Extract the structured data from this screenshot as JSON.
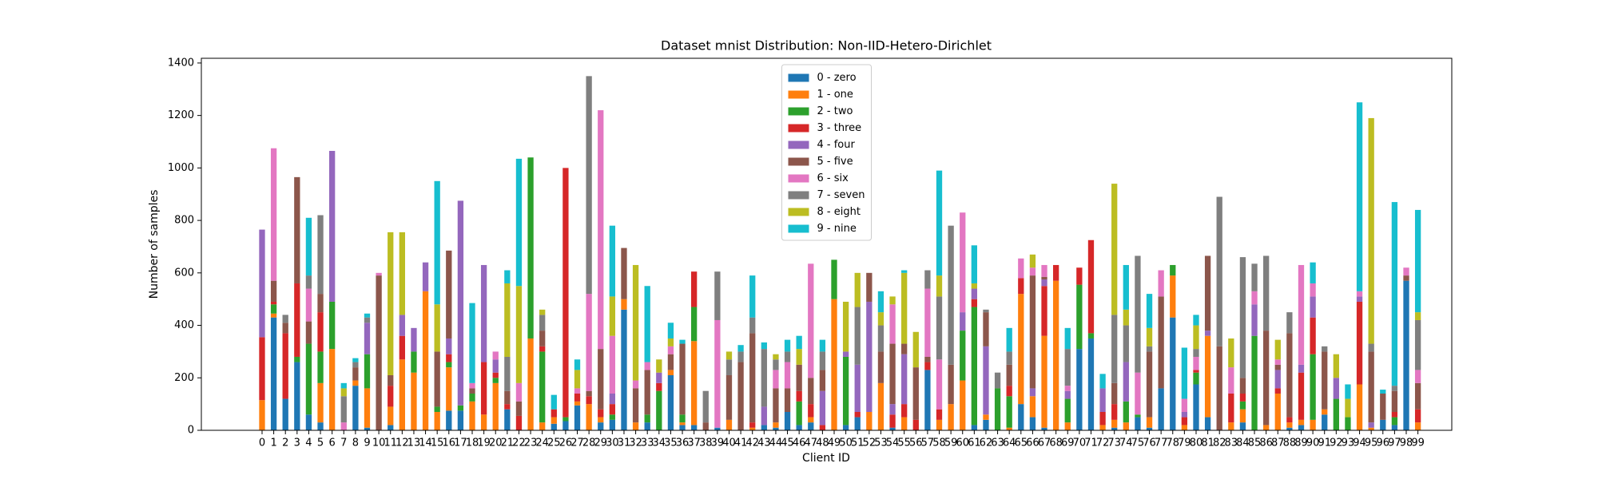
{
  "chart_data": {
    "type": "bar",
    "stacked": true,
    "title": "Dataset mnist Distribution: Non-IID-Hetero-Dirichlet",
    "x_label": "Client ID",
    "y_label": "Number of samples",
    "categories": [
      "0",
      "1",
      "2",
      "3",
      "4",
      "5",
      "6",
      "7",
      "8",
      "9",
      "10",
      "11",
      "12",
      "13",
      "14",
      "15",
      "16",
      "17",
      "18",
      "19",
      "20",
      "21",
      "22",
      "23",
      "24",
      "25",
      "26",
      "27",
      "28",
      "29",
      "30",
      "31",
      "32",
      "33",
      "34",
      "35",
      "36",
      "37",
      "38",
      "39",
      "40",
      "41",
      "42",
      "43",
      "44",
      "45",
      "46",
      "47",
      "48",
      "49",
      "50",
      "51",
      "52",
      "53",
      "54",
      "55",
      "56",
      "57",
      "58",
      "59",
      "60",
      "61",
      "62",
      "63",
      "64",
      "65",
      "66",
      "67",
      "68",
      "69",
      "70",
      "71",
      "72",
      "73",
      "74",
      "75",
      "76",
      "77",
      "78",
      "79",
      "80",
      "81",
      "82",
      "83",
      "84",
      "85",
      "86",
      "87",
      "88",
      "89",
      "90",
      "91",
      "92",
      "93",
      "94",
      "95",
      "96",
      "97",
      "98",
      "99"
    ],
    "ylim": [
      0,
      1418
    ],
    "yticks": [
      0,
      200,
      400,
      600,
      800,
      1000,
      1200,
      1400
    ],
    "legend": "upper center",
    "series": [
      {
        "name": "0 - zero",
        "color": "#1f77b4",
        "values": [
          0,
          430,
          120,
          260,
          60,
          30,
          0,
          0,
          170,
          10,
          0,
          20,
          0,
          0,
          0,
          0,
          75,
          75,
          0,
          0,
          0,
          80,
          0,
          0,
          0,
          25,
          35,
          95,
          0,
          30,
          40,
          460,
          0,
          30,
          0,
          210,
          20,
          20,
          0,
          10,
          0,
          0,
          0,
          20,
          10,
          70,
          20,
          30,
          0,
          0,
          20,
          50,
          0,
          0,
          10,
          0,
          0,
          230,
          0,
          0,
          0,
          20,
          40,
          0,
          0,
          100,
          50,
          10,
          0,
          0,
          310,
          350,
          0,
          10,
          0,
          50,
          10,
          160,
          430,
          0,
          175,
          50,
          0,
          0,
          30,
          0,
          0,
          0,
          10,
          20,
          0,
          60,
          0,
          0,
          0,
          0,
          40,
          20,
          570,
          0
        ]
      },
      {
        "name": "1 - one",
        "color": "#ff7f0e",
        "values": [
          115,
          15,
          0,
          0,
          0,
          150,
          310,
          0,
          20,
          150,
          0,
          70,
          270,
          220,
          530,
          70,
          165,
          0,
          110,
          60,
          180,
          0,
          0,
          350,
          30,
          25,
          0,
          15,
          100,
          20,
          0,
          40,
          30,
          0,
          0,
          20,
          10,
          320,
          0,
          0,
          40,
          0,
          10,
          0,
          20,
          0,
          0,
          20,
          0,
          500,
          0,
          0,
          70,
          180,
          0,
          50,
          0,
          0,
          40,
          100,
          190,
          0,
          20,
          0,
          10,
          420,
          80,
          350,
          570,
          30,
          0,
          0,
          20,
          30,
          30,
          0,
          40,
          0,
          160,
          20,
          0,
          310,
          0,
          30,
          50,
          0,
          20,
          140,
          20,
          20,
          40,
          20,
          0,
          0,
          175,
          10,
          0,
          0,
          0,
          30
        ]
      },
      {
        "name": "2 - two",
        "color": "#2ca02c",
        "values": [
          0,
          35,
          0,
          20,
          270,
          120,
          180,
          0,
          0,
          130,
          0,
          0,
          0,
          80,
          0,
          20,
          20,
          20,
          30,
          0,
          20,
          0,
          0,
          690,
          270,
          0,
          15,
          0,
          0,
          0,
          20,
          0,
          0,
          30,
          150,
          0,
          30,
          130,
          0,
          0,
          0,
          0,
          0,
          0,
          0,
          0,
          90,
          0,
          0,
          150,
          260,
          0,
          0,
          0,
          0,
          0,
          0,
          0,
          0,
          0,
          190,
          450,
          0,
          160,
          120,
          0,
          0,
          0,
          0,
          90,
          245,
          20,
          0,
          0,
          80,
          10,
          0,
          0,
          40,
          0,
          45,
          0,
          0,
          0,
          30,
          360,
          0,
          0,
          0,
          0,
          250,
          0,
          120,
          50,
          0,
          0,
          0,
          30,
          0,
          0
        ]
      },
      {
        "name": "3 - three",
        "color": "#d62728",
        "values": [
          240,
          10,
          250,
          280,
          0,
          150,
          0,
          0,
          0,
          0,
          0,
          80,
          90,
          0,
          0,
          0,
          30,
          0,
          0,
          200,
          20,
          20,
          55,
          0,
          20,
          30,
          950,
          30,
          30,
          30,
          40,
          0,
          0,
          0,
          30,
          0,
          0,
          135,
          0,
          0,
          0,
          0,
          20,
          0,
          0,
          0,
          40,
          50,
          20,
          0,
          0,
          20,
          0,
          0,
          50,
          50,
          40,
          30,
          40,
          0,
          0,
          30,
          0,
          0,
          40,
          60,
          0,
          190,
          60,
          0,
          65,
          355,
          50,
          60,
          0,
          0,
          0,
          0,
          0,
          30,
          10,
          0,
          0,
          110,
          30,
          0,
          0,
          20,
          20,
          180,
          140,
          0,
          0,
          0,
          315,
          0,
          0,
          20,
          0,
          50
        ]
      },
      {
        "name": "4 - four",
        "color": "#9467bd",
        "values": [
          410,
          0,
          0,
          0,
          0,
          0,
          575,
          0,
          0,
          120,
          0,
          0,
          80,
          90,
          110,
          0,
          60,
          780,
          0,
          370,
          50,
          0,
          0,
          0,
          0,
          0,
          0,
          0,
          0,
          0,
          40,
          0,
          0,
          0,
          40,
          0,
          0,
          0,
          0,
          0,
          0,
          0,
          0,
          70,
          0,
          0,
          0,
          0,
          130,
          0,
          20,
          180,
          420,
          0,
          40,
          190,
          0,
          0,
          0,
          0,
          70,
          40,
          260,
          0,
          0,
          0,
          30,
          25,
          0,
          30,
          0,
          0,
          90,
          0,
          150,
          0,
          0,
          0,
          0,
          20,
          0,
          20,
          0,
          0,
          0,
          120,
          0,
          70,
          0,
          30,
          80,
          0,
          80,
          0,
          20,
          20,
          0,
          0,
          0,
          0
        ]
      },
      {
        "name": "5 - five",
        "color": "#8c564b",
        "values": [
          0,
          80,
          40,
          405,
          85,
          70,
          0,
          0,
          50,
          0,
          590,
          40,
          0,
          0,
          0,
          210,
          335,
          0,
          20,
          0,
          0,
          50,
          55,
          0,
          60,
          0,
          0,
          0,
          20,
          230,
          0,
          195,
          130,
          170,
          0,
          60,
          270,
          0,
          30,
          0,
          170,
          260,
          340,
          0,
          130,
          90,
          100,
          100,
          80,
          0,
          0,
          0,
          110,
          120,
          230,
          40,
          200,
          20,
          0,
          150,
          0,
          0,
          130,
          0,
          80,
          0,
          430,
          10,
          0,
          0,
          0,
          0,
          0,
          80,
          0,
          0,
          250,
          350,
          0,
          0,
          0,
          285,
          320,
          0,
          60,
          0,
          360,
          20,
          320,
          0,
          0,
          220,
          0,
          0,
          0,
          270,
          100,
          80,
          20,
          100
        ]
      },
      {
        "name": "6 - six",
        "color": "#e377c2",
        "values": [
          0,
          505,
          0,
          0,
          125,
          0,
          0,
          30,
          0,
          0,
          10,
          0,
          0,
          0,
          0,
          0,
          0,
          0,
          20,
          0,
          30,
          0,
          70,
          0,
          0,
          0,
          0,
          20,
          370,
          910,
          220,
          0,
          30,
          30,
          0,
          30,
          0,
          0,
          0,
          410,
          0,
          0,
          0,
          0,
          70,
          100,
          0,
          435,
          0,
          0,
          0,
          0,
          0,
          0,
          150,
          0,
          0,
          260,
          190,
          0,
          380,
          0,
          0,
          0,
          0,
          75,
          30,
          45,
          0,
          20,
          0,
          0,
          0,
          0,
          0,
          160,
          0,
          100,
          0,
          50,
          50,
          0,
          0,
          100,
          0,
          50,
          0,
          20,
          0,
          380,
          50,
          0,
          0,
          0,
          20,
          0,
          0,
          0,
          30,
          50
        ]
      },
      {
        "name": "7 - seven",
        "color": "#7f7f7f",
        "values": [
          0,
          0,
          30,
          0,
          50,
          300,
          0,
          100,
          20,
          20,
          0,
          0,
          0,
          0,
          0,
          0,
          0,
          0,
          0,
          0,
          0,
          130,
          0,
          0,
          60,
          0,
          0,
          0,
          830,
          0,
          0,
          0,
          0,
          0,
          0,
          0,
          0,
          0,
          120,
          185,
          60,
          40,
          60,
          220,
          40,
          40,
          0,
          0,
          70,
          0,
          0,
          220,
          0,
          100,
          0,
          0,
          0,
          70,
          240,
          530,
          0,
          0,
          10,
          60,
          50,
          0,
          0,
          0,
          0,
          140,
          0,
          0,
          0,
          260,
          140,
          445,
          20,
          0,
          0,
          0,
          30,
          0,
          570,
          0,
          460,
          105,
          285,
          0,
          80,
          0,
          0,
          20,
          0,
          0,
          0,
          30,
          0,
          20,
          0,
          190
        ]
      },
      {
        "name": "8 - eight",
        "color": "#bcbd22",
        "values": [
          0,
          0,
          0,
          0,
          0,
          0,
          0,
          30,
          0,
          0,
          0,
          545,
          315,
          0,
          0,
          180,
          0,
          0,
          0,
          0,
          0,
          280,
          370,
          0,
          20,
          0,
          0,
          70,
          0,
          0,
          150,
          0,
          440,
          0,
          50,
          30,
          0,
          0,
          0,
          0,
          30,
          0,
          0,
          0,
          20,
          0,
          60,
          0,
          0,
          0,
          190,
          130,
          0,
          50,
          30,
          270,
          135,
          0,
          80,
          0,
          0,
          20,
          0,
          0,
          0,
          0,
          50,
          0,
          0,
          0,
          0,
          0,
          0,
          500,
          60,
          0,
          70,
          0,
          0,
          0,
          90,
          0,
          0,
          110,
          0,
          0,
          0,
          75,
          0,
          0,
          0,
          0,
          90,
          70,
          0,
          860,
          0,
          0,
          0,
          30
        ]
      },
      {
        "name": "9 - nine",
        "color": "#17becf",
        "values": [
          0,
          0,
          0,
          0,
          220,
          0,
          0,
          20,
          15,
          15,
          0,
          0,
          0,
          0,
          0,
          470,
          0,
          0,
          305,
          0,
          0,
          50,
          485,
          0,
          0,
          55,
          0,
          40,
          0,
          0,
          270,
          0,
          0,
          290,
          0,
          60,
          15,
          0,
          0,
          0,
          0,
          25,
          160,
          25,
          0,
          45,
          50,
          0,
          45,
          0,
          0,
          0,
          0,
          80,
          0,
          10,
          0,
          0,
          400,
          0,
          0,
          145,
          0,
          0,
          90,
          0,
          0,
          0,
          0,
          80,
          0,
          0,
          55,
          0,
          170,
          0,
          130,
          0,
          0,
          195,
          40,
          0,
          0,
          0,
          0,
          0,
          0,
          0,
          0,
          0,
          80,
          0,
          0,
          55,
          720,
          0,
          15,
          700,
          0,
          390
        ]
      }
    ]
  }
}
